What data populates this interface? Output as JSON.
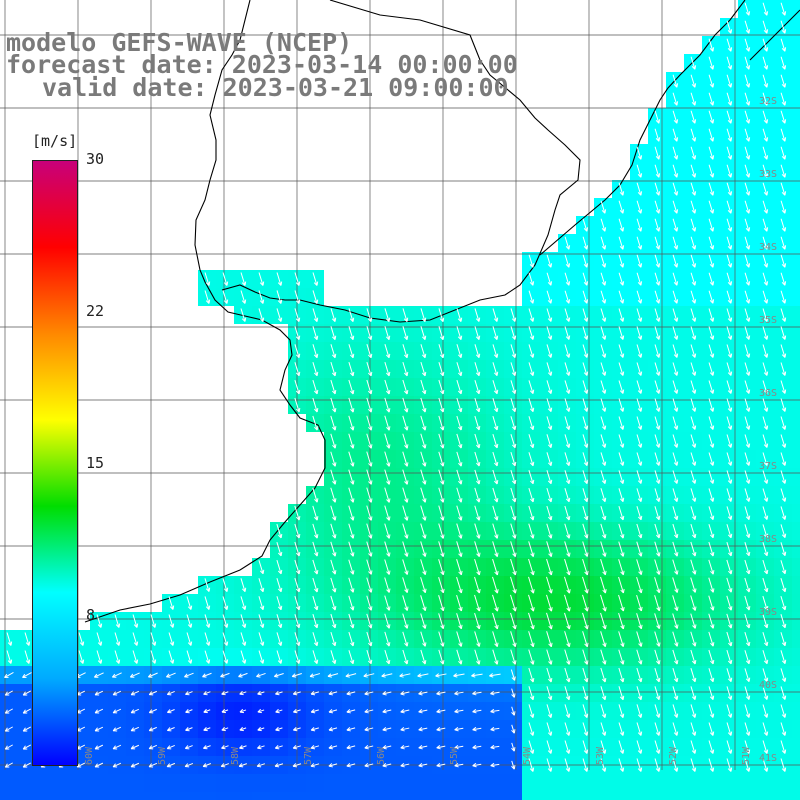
{
  "title": {
    "model": "modelo GEFS-WAVE (NCEP)",
    "forecast": "forecast date: 2023-03-14 00:00:00",
    "valid": "valid date: 2023-03-21 09:00:00"
  },
  "colorbar": {
    "unit": "[m/s]",
    "ticks": [
      "30",
      "22",
      "15",
      "8"
    ],
    "range": [
      0,
      30
    ],
    "stops": [
      "#0000ff",
      "#00aaff",
      "#00ffff",
      "#00dd00",
      "#ffff00",
      "#ff8800",
      "#ff0000",
      "#c8007a"
    ]
  },
  "map": {
    "lat_labels": [
      "32S",
      "33S",
      "34S",
      "35S",
      "36S",
      "37S",
      "38S",
      "39S",
      "40S",
      "41S"
    ],
    "lon_labels": [
      "60W",
      "59W",
      "58W",
      "57W",
      "56W",
      "55W",
      "54W",
      "53W",
      "52W",
      "51W"
    ],
    "wind_direction": "north-northeast to south-southwest"
  }
}
